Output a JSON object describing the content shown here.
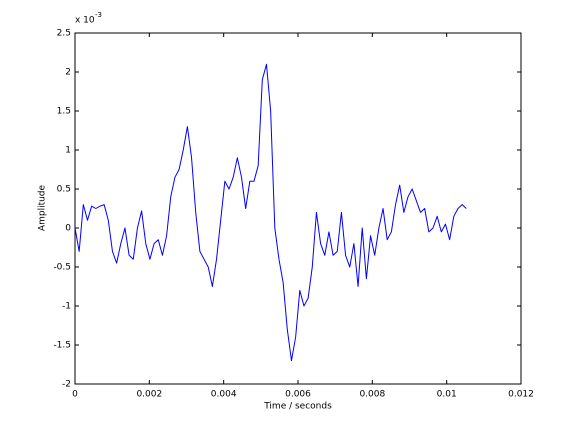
{
  "chart_data": {
    "type": "line",
    "xlabel": "Time / seconds",
    "ylabel": "Amplitude",
    "y_exponent_base": "x 10",
    "y_exponent": "-3",
    "xlim": [
      0,
      0.012
    ],
    "xticks": [
      0,
      0.002,
      0.004,
      0.006,
      0.008,
      0.01,
      0.012
    ],
    "ylim": [
      -2,
      2.5
    ],
    "yticks": [
      -2,
      -1.5,
      -1,
      -0.5,
      0,
      0.5,
      1,
      1.5,
      2,
      2.5
    ],
    "series": [
      {
        "color": "#0000ff",
        "x": [
          0,
          0.000112,
          0.000224,
          0.000336,
          0.000448,
          0.00056,
          0.000672,
          0.000784,
          0.000896,
          0.001008,
          0.00112,
          0.001232,
          0.001344,
          0.001456,
          0.001568,
          0.00168,
          0.001792,
          0.001904,
          0.002016,
          0.002128,
          0.00224,
          0.002352,
          0.002464,
          0.002576,
          0.002688,
          0.0028,
          0.002912,
          0.003024,
          0.003136,
          0.003248,
          0.00336,
          0.003472,
          0.003584,
          0.003696,
          0.003808,
          0.00392,
          0.004032,
          0.004144,
          0.004256,
          0.004368,
          0.00448,
          0.004592,
          0.004704,
          0.004816,
          0.004928,
          0.00504,
          0.005152,
          0.005264,
          0.005376,
          0.005488,
          0.0056,
          0.005712,
          0.005824,
          0.005936,
          0.006048,
          0.00616,
          0.006272,
          0.006384,
          0.006496,
          0.006608,
          0.00672,
          0.006832,
          0.006944,
          0.007056,
          0.007168,
          0.00728,
          0.007392,
          0.007504,
          0.007616,
          0.007728,
          0.00784,
          0.007952,
          0.008064,
          0.008176,
          0.008288,
          0.0084,
          0.008512,
          0.008624,
          0.008736,
          0.008848,
          0.00896,
          0.009072,
          0.009184,
          0.009296,
          0.009408,
          0.00952,
          0.009632,
          0.009744,
          0.009856,
          0.009968,
          0.01008,
          0.010192,
          0.010304,
          0.010416,
          0.010528
        ],
        "values": [
          0.0,
          -0.3,
          0.3,
          0.1,
          0.28,
          0.25,
          0.28,
          0.3,
          0.1,
          -0.3,
          -0.45,
          -0.2,
          0.0,
          -0.35,
          -0.4,
          0.0,
          0.22,
          -0.2,
          -0.4,
          -0.2,
          -0.15,
          -0.35,
          -0.1,
          0.4,
          0.65,
          0.75,
          1.0,
          1.3,
          0.9,
          0.2,
          -0.3,
          -0.4,
          -0.5,
          -0.75,
          -0.4,
          0.1,
          0.6,
          0.5,
          0.65,
          0.9,
          0.65,
          0.25,
          0.6,
          0.6,
          0.8,
          1.9,
          2.1,
          1.5,
          0.0,
          -0.4,
          -0.7,
          -1.3,
          -1.7,
          -1.4,
          -0.8,
          -1.0,
          -0.9,
          -0.5,
          0.2,
          -0.2,
          -0.35,
          -0.05,
          -0.35,
          -0.3,
          0.2,
          -0.35,
          -0.5,
          -0.2,
          -0.75,
          0.0,
          -0.65,
          -0.1,
          -0.35,
          0.0,
          0.25,
          -0.15,
          -0.05,
          0.3,
          0.55,
          0.2,
          0.4,
          0.5,
          0.35,
          0.2,
          0.25,
          -0.05,
          0.0,
          0.15,
          -0.05,
          0.05,
          -0.15,
          0.15,
          0.25,
          0.3,
          0.25
        ]
      }
    ]
  }
}
